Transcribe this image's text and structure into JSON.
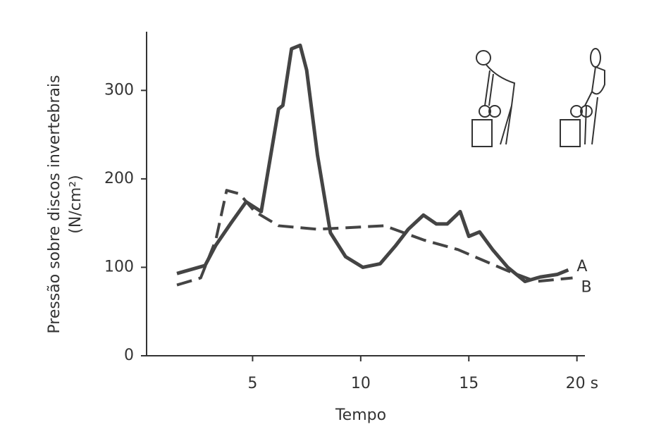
{
  "chart_data": {
    "type": "line",
    "x_label": "Tempo",
    "y_label": "Pressão sobre discos invertebrais",
    "y_unit": "(N/cm²)",
    "xlim": [
      0,
      20.5
    ],
    "ylim": [
      0,
      360
    ],
    "xticks": [
      5,
      10,
      15,
      {
        "value": 20,
        "label": "20 s"
      }
    ],
    "yticks": [
      0,
      100,
      200,
      300
    ],
    "series": [
      {
        "name": "A",
        "color": "#444",
        "dash": false,
        "x": [
          1.5,
          2.8,
          3.3,
          4.0,
          4.7,
          5.4,
          6.2,
          6.4,
          6.8,
          7.2,
          7.5,
          8.0,
          8.6,
          9.3,
          10.1,
          10.9,
          11.6,
          12.2,
          12.9,
          13.5,
          14.0,
          14.6,
          15.0,
          15.5,
          16.1,
          16.8,
          17.6,
          18.3,
          19.1,
          19.6
        ],
        "values": [
          93,
          102,
          125,
          150,
          174,
          163,
          279,
          283,
          347,
          351,
          323,
          227,
          139,
          112,
          100,
          104,
          124,
          143,
          159,
          149,
          149,
          163,
          135,
          140,
          120,
          100,
          84,
          89,
          92,
          97
        ]
      },
      {
        "name": "B",
        "color": "#444",
        "dash": true,
        "x": [
          1.5,
          2.6,
          3.3,
          3.8,
          4.4,
          5.1,
          6.2,
          8.0,
          11.1,
          12.9,
          14.5,
          16.8,
          18.1,
          19.8
        ],
        "values": [
          80,
          88,
          131,
          187,
          183,
          163,
          147,
          143,
          147,
          131,
          120,
          96,
          84,
          88
        ]
      }
    ]
  }
}
